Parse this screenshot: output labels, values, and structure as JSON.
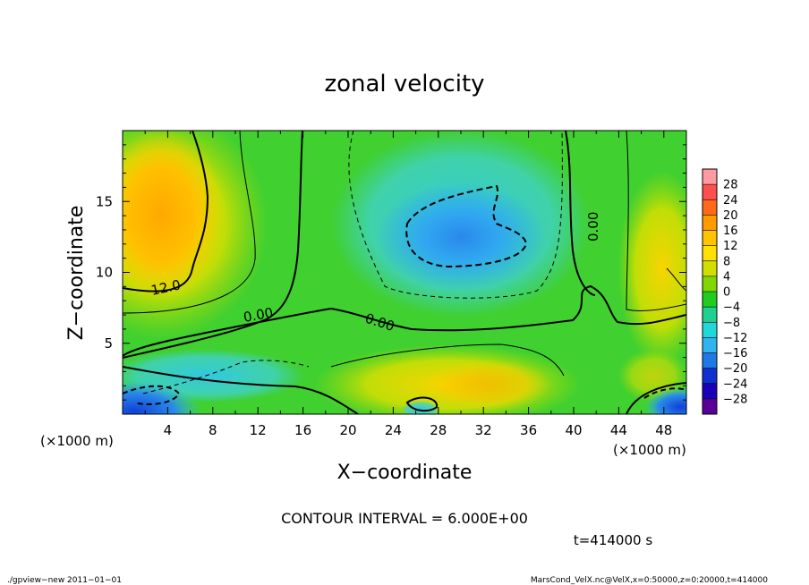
{
  "chart_data": {
    "type": "heatmap",
    "title": "zonal velocity",
    "xlabel": "X−coordinate",
    "ylabel": "Z−coordinate",
    "x_unit": "(×1000 m)",
    "y_unit": "(×1000 m)",
    "xlim": [
      0,
      50
    ],
    "ylim": [
      0,
      20
    ],
    "x_ticks": [
      "4",
      "8",
      "12",
      "16",
      "20",
      "24",
      "28",
      "32",
      "36",
      "40",
      "44",
      "48"
    ],
    "y_ticks": [
      "5",
      "10",
      "15"
    ],
    "colorbar": {
      "labels": [
        "28",
        "24",
        "20",
        "16",
        "12",
        "8",
        "4",
        "0",
        "−4",
        "−8",
        "−12",
        "−16",
        "−20",
        "−24",
        "−28"
      ],
      "colors": [
        "#ff9aa0",
        "#ff5050",
        "#ff6a1a",
        "#ff9a00",
        "#ffc400",
        "#ffe000",
        "#cfe000",
        "#80d800",
        "#20cc20",
        "#20d090",
        "#20d8d8",
        "#30b4f0",
        "#1e78e6",
        "#1030d0",
        "#1a00b8",
        "#5a0098"
      ]
    },
    "contour_labels": [
      "12.0",
      "0.00",
      "0.00",
      "0.00"
    ],
    "contour_interval": "CONTOUR INTERVAL = 6.000E+00",
    "time_label": "t=414000 s",
    "footer_left": "./gpview−new   2011−01−01",
    "footer_right": "MarsCond_VelX.nc@VelX,x=0:50000,z=0:20000,t=414000"
  }
}
